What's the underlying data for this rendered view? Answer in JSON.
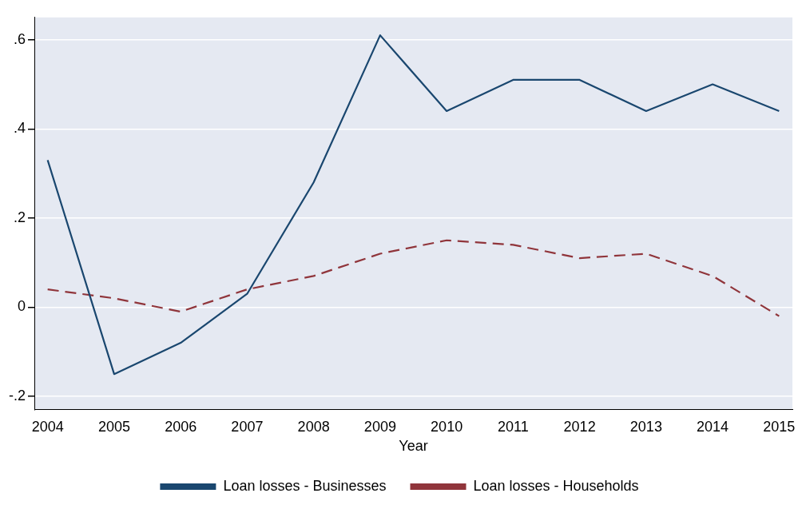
{
  "chart_data": {
    "type": "line",
    "xlabel": "Year",
    "x": [
      2004,
      2005,
      2006,
      2007,
      2008,
      2009,
      2010,
      2011,
      2012,
      2013,
      2014,
      2015
    ],
    "xlim": [
      2003.8,
      2015.2
    ],
    "xticks": [
      2004,
      2005,
      2006,
      2007,
      2008,
      2009,
      2010,
      2011,
      2012,
      2013,
      2014,
      2015
    ],
    "ylim": [
      -0.23,
      0.65
    ],
    "yticks": [
      {
        "value": -0.2,
        "label": "-.2"
      },
      {
        "value": 0,
        "label": "0"
      },
      {
        "value": 0.2,
        "label": ".2"
      },
      {
        "value": 0.4,
        "label": ".4"
      },
      {
        "value": 0.6,
        "label": ".6"
      }
    ],
    "grid": "y",
    "legend": "bottom",
    "marker": "none",
    "series": [
      {
        "name": "Loan losses - Businesses",
        "color": "#1a476f",
        "line_style": "solid",
        "values": [
          0.33,
          -0.15,
          -0.08,
          0.03,
          0.28,
          0.61,
          0.44,
          0.51,
          0.51,
          0.44,
          0.5,
          0.44
        ]
      },
      {
        "name": "Loan losses - Households",
        "color": "#90353b",
        "line_style": "dashed",
        "values": [
          0.04,
          0.02,
          -0.01,
          0.04,
          0.07,
          0.12,
          0.15,
          0.14,
          0.11,
          0.12,
          0.07,
          -0.02
        ]
      }
    ]
  }
}
